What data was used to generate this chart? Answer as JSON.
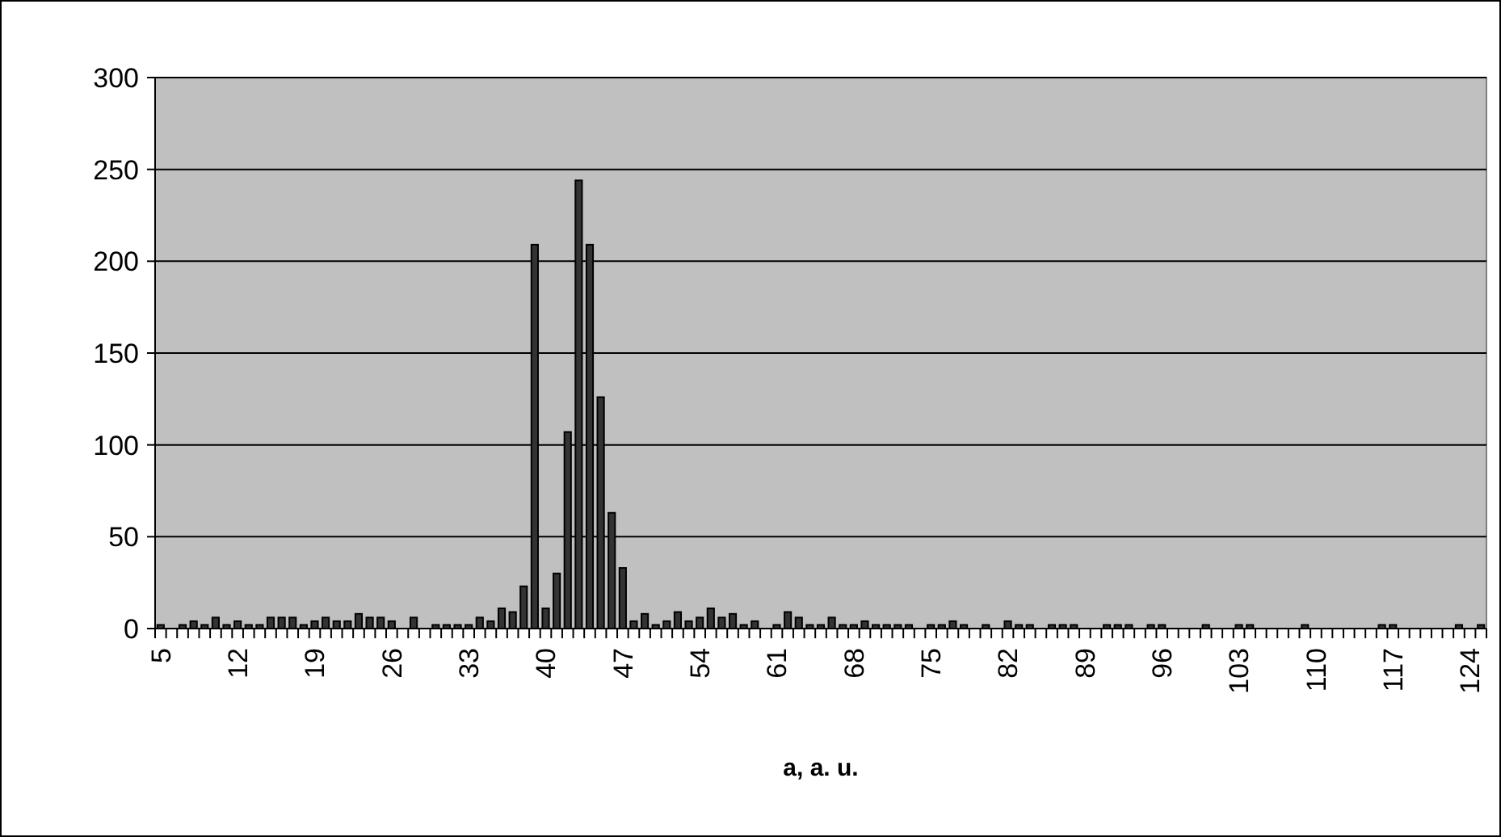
{
  "chart_data": {
    "type": "bar",
    "xlabel": "a, a. u.",
    "categories": [
      "5",
      null,
      null,
      null,
      null,
      null,
      null,
      "12",
      null,
      null,
      null,
      null,
      null,
      null,
      "19",
      null,
      null,
      null,
      null,
      null,
      null,
      "26",
      null,
      null,
      null,
      null,
      null,
      null,
      "33",
      null,
      null,
      null,
      null,
      null,
      null,
      "40",
      null,
      null,
      null,
      null,
      null,
      null,
      "47",
      null,
      null,
      null,
      null,
      null,
      null,
      "54",
      null,
      null,
      null,
      null,
      null,
      null,
      "61",
      null,
      null,
      null,
      null,
      null,
      null,
      "68",
      null,
      null,
      null,
      null,
      null,
      null,
      "75",
      null,
      null,
      null,
      null,
      null,
      null,
      "82",
      null,
      null,
      null,
      null,
      null,
      null,
      "89",
      null,
      null,
      null,
      null,
      null,
      null,
      "96",
      null,
      null,
      null,
      null,
      null,
      null,
      "103",
      null,
      null,
      null,
      null,
      null,
      null,
      "110",
      null,
      null,
      null,
      null,
      null,
      null,
      "117",
      null,
      null,
      null,
      null,
      null,
      null,
      "124",
      null
    ],
    "values": [
      2,
      0,
      2,
      4,
      2,
      6,
      2,
      4,
      2,
      2,
      6,
      6,
      6,
      2,
      4,
      6,
      4,
      4,
      8,
      6,
      6,
      4,
      0,
      6,
      0,
      2,
      2,
      2,
      2,
      6,
      4,
      11,
      9,
      23,
      209,
      11,
      30,
      107,
      244,
      209,
      126,
      63,
      33,
      4,
      8,
      2,
      4,
      9,
      4,
      6,
      11,
      6,
      8,
      2,
      4,
      0,
      2,
      9,
      6,
      2,
      2,
      6,
      2,
      2,
      4,
      2,
      2,
      2,
      2,
      0,
      2,
      2,
      4,
      2,
      0,
      2,
      0,
      4,
      2,
      2,
      0,
      2,
      2,
      2,
      0,
      0,
      2,
      2,
      2,
      0,
      2,
      2,
      0,
      0,
      0,
      2,
      0,
      0,
      2,
      2,
      0,
      0,
      0,
      0,
      2,
      0,
      0,
      0,
      0,
      0,
      0,
      2,
      2,
      0,
      0,
      0,
      0,
      0,
      2,
      0,
      2
    ],
    "color": "#333333",
    "ylim": [
      0,
      300
    ],
    "yticks": [
      0,
      50,
      100,
      150,
      200,
      250,
      300
    ],
    "grid": "y"
  }
}
